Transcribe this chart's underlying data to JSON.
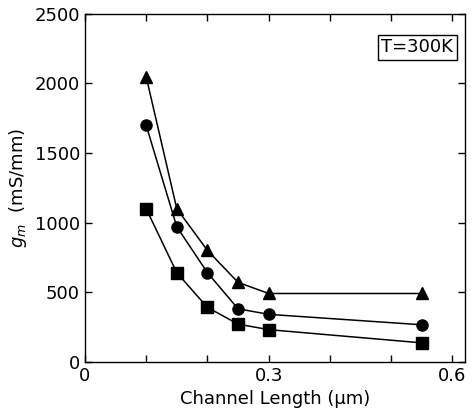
{
  "title_annotation": "T=300K",
  "xlabel": "Channel Length (μm)",
  "ylabel": "$g_m$  (mS/mm)",
  "xlim": [
    0.0,
    0.62
  ],
  "ylim": [
    0,
    2500
  ],
  "xticks": [
    0.0,
    0.1,
    0.2,
    0.3,
    0.4,
    0.5,
    0.6
  ],
  "xticklabels": [
    "0",
    "",
    "",
    "0.3",
    "",
    "",
    "0.6"
  ],
  "yticks": [
    0,
    500,
    1000,
    1500,
    2000,
    2500
  ],
  "yticklabels": [
    "0",
    "500",
    "1000",
    "1500",
    "2000",
    "2500"
  ],
  "bg_color": "#ffffff",
  "data_triangle": {
    "x": [
      0.1,
      0.15,
      0.2,
      0.25,
      0.3,
      0.55
    ],
    "y": [
      2050,
      1100,
      800,
      570,
      490,
      490
    ]
  },
  "data_circle": {
    "x": [
      0.1,
      0.15,
      0.2,
      0.25,
      0.3,
      0.55
    ],
    "y": [
      1700,
      970,
      640,
      380,
      340,
      265
    ]
  },
  "data_square": {
    "x": [
      0.1,
      0.15,
      0.2,
      0.25,
      0.3,
      0.55
    ],
    "y": [
      1100,
      640,
      390,
      270,
      230,
      135
    ]
  },
  "curve_color": "#000000",
  "marker_color": "#000000",
  "marker_size": 8,
  "linewidth": 1.1
}
